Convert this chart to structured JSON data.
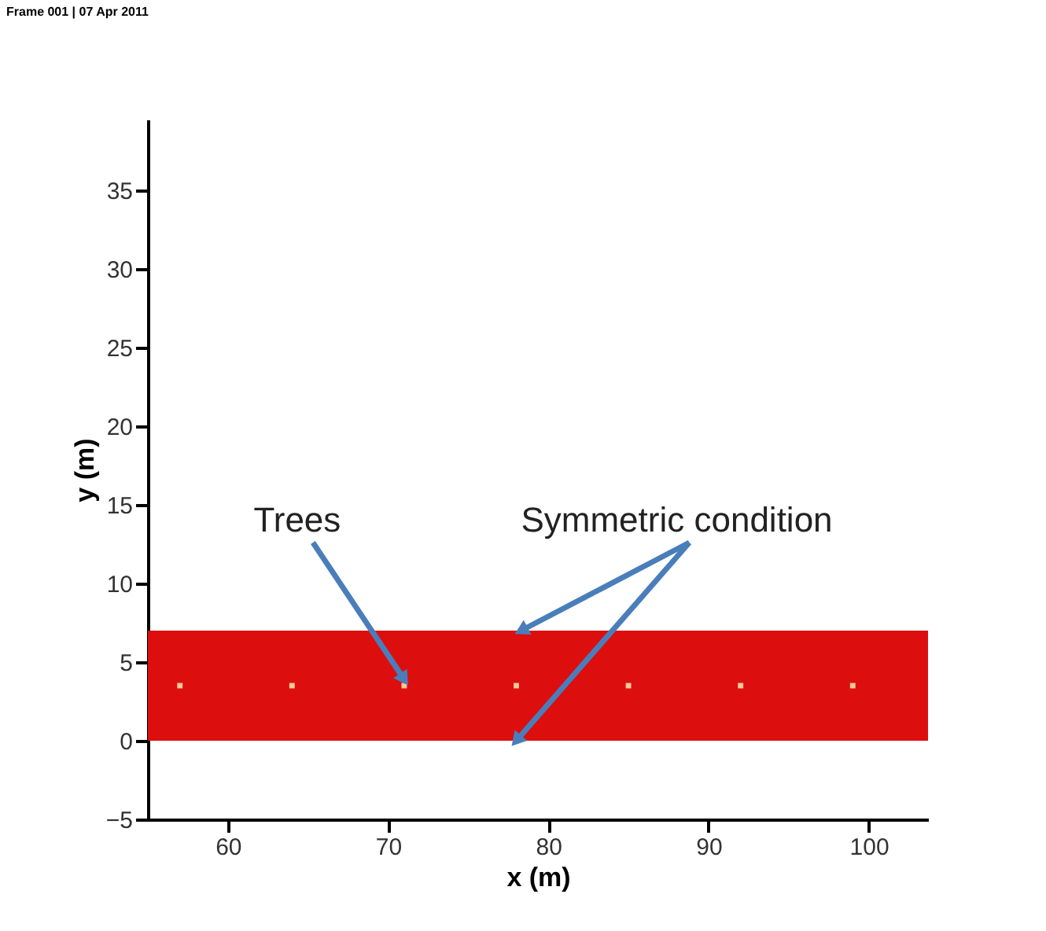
{
  "chart_data": {
    "type": "scatter",
    "xlabel": "x (m)",
    "ylabel": "y (m)",
    "xlim": [
      55,
      103.7
    ],
    "xticks": [
      60,
      70,
      80,
      90,
      100
    ],
    "ylim": [
      -5,
      39.5
    ],
    "yticks": [
      -5,
      0,
      5,
      10,
      15,
      20,
      25,
      30,
      35
    ],
    "grid": false,
    "marker": "square",
    "series": [
      {
        "color": "#f6c89a",
        "x": [
          57,
          64,
          71,
          78,
          85,
          92,
          99
        ],
        "values": [
          3.5,
          3.5,
          3.5,
          3.5,
          3.5,
          3.5,
          3.5
        ]
      }
    ],
    "bands": [
      {
        "axis": "y",
        "from": 0,
        "to": 7,
        "color": "#dd0e0e"
      }
    ],
    "annotations": [
      "Frame 001 | 07 Apr 2011",
      {
        "text": "Trees",
        "x": 71,
        "y": 3.5
      },
      {
        "text": "Symmetric condition",
        "x": 78,
        "y": 7
      }
    ]
  }
}
